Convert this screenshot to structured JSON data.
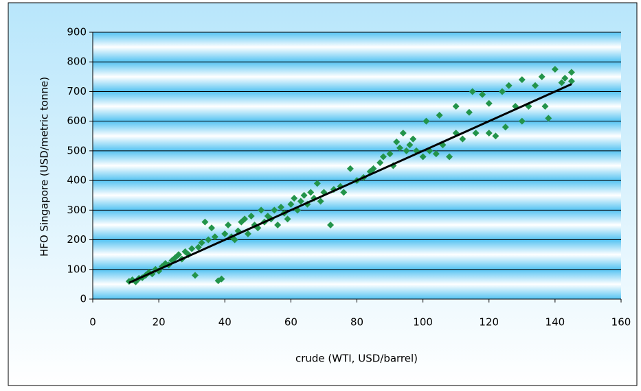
{
  "chart_data": {
    "type": "scatter",
    "y_label": "HFO Singapore (USD/metric tonne)",
    "x_label": "crude (WTI, USD/barrel)",
    "xlim": [
      0,
      160
    ],
    "xticks": [
      0,
      20,
      40,
      60,
      80,
      100,
      120,
      140,
      160
    ],
    "ylim": [
      0,
      900
    ],
    "yticks": [
      0,
      100,
      200,
      300,
      400,
      500,
      600,
      700,
      800,
      900
    ],
    "grid": true,
    "series": [
      {
        "color": "#23944a",
        "x": [
          11,
          12,
          13,
          14,
          15,
          16,
          17,
          18,
          19,
          20,
          21,
          22,
          23,
          24,
          25,
          26,
          27,
          28,
          29,
          30,
          31,
          32,
          33,
          34,
          35,
          36,
          37,
          38,
          39,
          40,
          41,
          42,
          43,
          44,
          45,
          46,
          47,
          48,
          49,
          50,
          51,
          52,
          53,
          54,
          55,
          56,
          57,
          58,
          59,
          60,
          61,
          62,
          63,
          64,
          65,
          66,
          67,
          68,
          69,
          70,
          72,
          73,
          75,
          76,
          78,
          80,
          82,
          84,
          85,
          87,
          88,
          90,
          91,
          92,
          93,
          94,
          95,
          96,
          97,
          98,
          100,
          101,
          102,
          104,
          105,
          106,
          108,
          110,
          110,
          112,
          114,
          115,
          116,
          118,
          120,
          120,
          122,
          124,
          125,
          126,
          128,
          130,
          130,
          132,
          134,
          136,
          137,
          138,
          140,
          142,
          143,
          145,
          145
        ],
        "values": [
          60,
          65,
          58,
          70,
          72,
          80,
          90,
          85,
          100,
          95,
          110,
          120,
          115,
          130,
          140,
          150,
          135,
          160,
          150,
          170,
          80,
          175,
          190,
          260,
          200,
          240,
          210,
          62,
          68,
          220,
          250,
          210,
          200,
          230,
          260,
          270,
          220,
          280,
          250,
          240,
          300,
          260,
          280,
          270,
          300,
          250,
          310,
          290,
          270,
          320,
          340,
          300,
          330,
          350,
          320,
          360,
          340,
          390,
          330,
          360,
          250,
          370,
          380,
          360,
          440,
          400,
          410,
          430,
          440,
          460,
          480,
          490,
          450,
          530,
          510,
          560,
          500,
          520,
          540,
          500,
          480,
          600,
          500,
          490,
          620,
          520,
          480,
          650,
          560,
          540,
          630,
          700,
          560,
          690,
          660,
          560,
          550,
          700,
          580,
          720,
          650,
          600,
          740,
          650,
          720,
          750,
          650,
          610,
          775,
          730,
          745,
          765,
          735
        ]
      }
    ],
    "trend": {
      "color": "#000000",
      "x": [
        11,
        145
      ],
      "values": [
        55,
        725
      ]
    }
  }
}
